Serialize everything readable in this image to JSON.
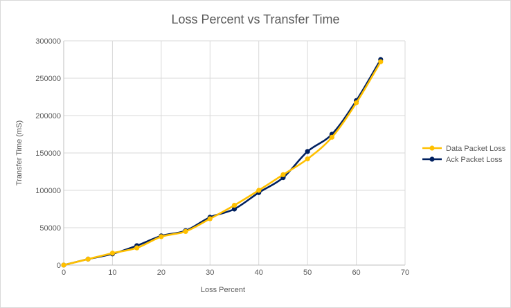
{
  "chart_data": {
    "type": "line",
    "title": "Loss Percent vs Transfer Time",
    "xlabel": "Loss Percent",
    "ylabel": "Transfer Time (mS)",
    "xlim": [
      0,
      70
    ],
    "ylim": [
      0,
      300000
    ],
    "x_ticks": [
      "0",
      "10",
      "20",
      "30",
      "40",
      "50",
      "60",
      "70"
    ],
    "y_ticks": [
      "0",
      "50000",
      "100000",
      "150000",
      "200000",
      "250000",
      "300000"
    ],
    "grid": true,
    "legend_position": "right",
    "series": [
      {
        "name": "Data Packet Loss",
        "color": "#FFC000",
        "x": [
          0,
          5,
          10,
          15,
          20,
          25,
          30,
          35,
          40,
          45,
          50,
          55,
          60,
          65
        ],
        "y": [
          0,
          8000,
          16000,
          23000,
          38000,
          45000,
          62000,
          80000,
          100000,
          121000,
          142000,
          171000,
          217000,
          272000
        ]
      },
      {
        "name": "Ack Packet Loss",
        "color": "#002060",
        "x": [
          0,
          5,
          10,
          15,
          20,
          25,
          30,
          35,
          40,
          45,
          50,
          55,
          60,
          65
        ],
        "y": [
          0,
          8000,
          15000,
          26000,
          39000,
          46000,
          64000,
          75000,
          97000,
          117000,
          152000,
          175000,
          220000,
          275000
        ]
      }
    ]
  }
}
